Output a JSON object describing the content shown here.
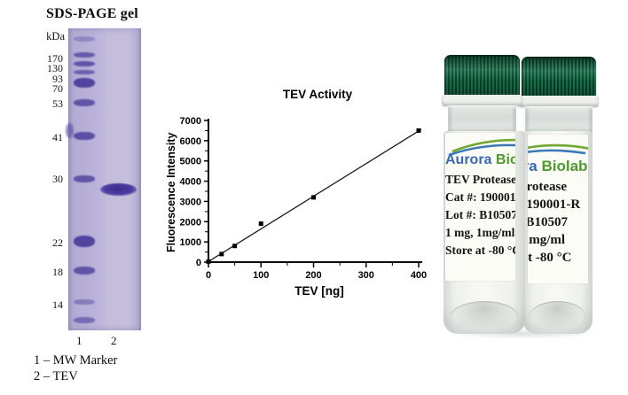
{
  "gel": {
    "title": "SDS-PAGE gel",
    "unit": "kDa",
    "ladder": [
      {
        "label": "170",
        "y": 27
      },
      {
        "label": "130",
        "y": 38
      },
      {
        "label": "93",
        "y": 50
      },
      {
        "label": "70",
        "y": 61
      },
      {
        "label": "53",
        "y": 78
      },
      {
        "label": "41",
        "y": 116
      },
      {
        "label": "30",
        "y": 163
      },
      {
        "label": "22",
        "y": 235
      },
      {
        "label": "18",
        "y": 268
      },
      {
        "label": "14",
        "y": 305
      }
    ],
    "marker_bands": [
      {
        "y": 9,
        "h": 6,
        "o": 0.35
      },
      {
        "y": 27,
        "h": 6,
        "o": 0.75
      },
      {
        "y": 37,
        "h": 6,
        "o": 0.8
      },
      {
        "y": 47,
        "h": 5,
        "o": 0.7
      },
      {
        "y": 56,
        "h": 11,
        "o": 0.95
      },
      {
        "y": 80,
        "h": 8,
        "o": 0.8
      },
      {
        "y": 117,
        "h": 9,
        "o": 0.85
      },
      {
        "y": 166,
        "h": 8,
        "o": 0.8
      },
      {
        "y": 234,
        "h": 13,
        "o": 0.95
      },
      {
        "y": 269,
        "h": 9,
        "o": 0.8
      },
      {
        "y": 306,
        "h": 6,
        "o": 0.45
      },
      {
        "y": 326,
        "h": 7,
        "o": 0.6
      }
    ],
    "lane_numbers": [
      "1",
      "2"
    ],
    "legend": [
      "1 – MW Marker",
      "2 – TEV"
    ]
  },
  "chart_data": {
    "type": "scatter",
    "title": "TEV Activity",
    "xlabel": "TEV [ng]",
    "ylabel": "Fluorescence Intensity",
    "x": [
      0,
      25,
      50,
      100,
      200,
      400
    ],
    "y": [
      30,
      400,
      800,
      1900,
      3200,
      6500
    ],
    "fit_line": {
      "x": [
        0,
        405
      ],
      "y": [
        30,
        6560
      ]
    },
    "xlim": [
      0,
      400
    ],
    "ylim": [
      0,
      7000
    ],
    "xticks": [
      0,
      100,
      200,
      300,
      400
    ],
    "yticks": [
      0,
      1000,
      2000,
      3000,
      4000,
      5000,
      6000,
      7000
    ],
    "x_minor_step": 50,
    "y_minor_step": 500,
    "grid": false,
    "legend_position": "none",
    "marker": "square",
    "marker_color": "#000000",
    "line_color": "#1a1a1a"
  },
  "vials": {
    "brand": {
      "part1": "Aurora",
      "part2": "Biolabs"
    },
    "label_lines": [
      "TEV Protease",
      "Cat #: 190001-R",
      "Lot #: B10507",
      "1 mg, 1mg/ml",
      "Store at -80 °C"
    ]
  },
  "colors": {
    "gel_background": "#bab2d8",
    "gel_band": "#4d3e9c",
    "cap_green": "#0e5137",
    "brand_blue": "#3a67b5",
    "brand_green": "#4f9a2e",
    "swoosh_green": "#71a832",
    "swoosh_blue": "#3a78b5"
  }
}
